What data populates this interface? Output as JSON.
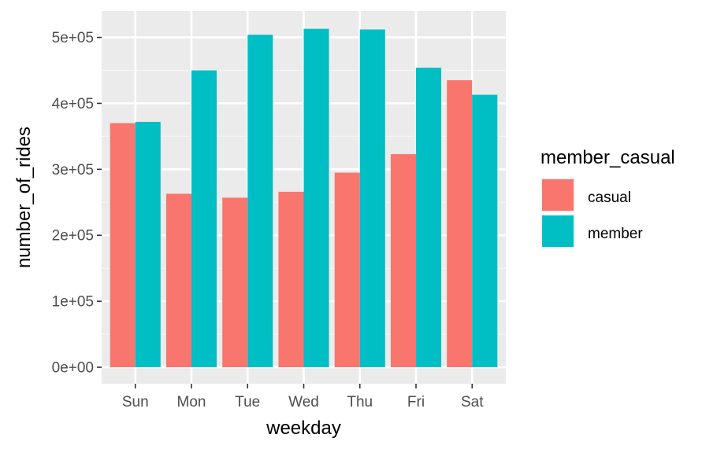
{
  "chart_data": {
    "type": "bar",
    "xlabel": "weekday",
    "ylabel": "number_of_rides",
    "categories": [
      "Sun",
      "Mon",
      "Tue",
      "Wed",
      "Thu",
      "Fri",
      "Sat"
    ],
    "series": [
      {
        "name": "casual",
        "color": "#F8766D",
        "values": [
          370000,
          263000,
          257000,
          266000,
          295000,
          323000,
          435000
        ]
      },
      {
        "name": "member",
        "color": "#00BFC4",
        "values": [
          372000,
          450000,
          504000,
          513000,
          512000,
          454000,
          413000
        ]
      }
    ],
    "yticks": [
      0,
      100000,
      200000,
      300000,
      400000,
      500000
    ],
    "ytick_labels": [
      "0e+00",
      "1e+05",
      "2e+05",
      "3e+05",
      "4e+05",
      "5e+05"
    ],
    "ylim": [
      -25000,
      540000
    ],
    "grid": true,
    "legend": {
      "title": "member_casual",
      "position": "right"
    }
  }
}
